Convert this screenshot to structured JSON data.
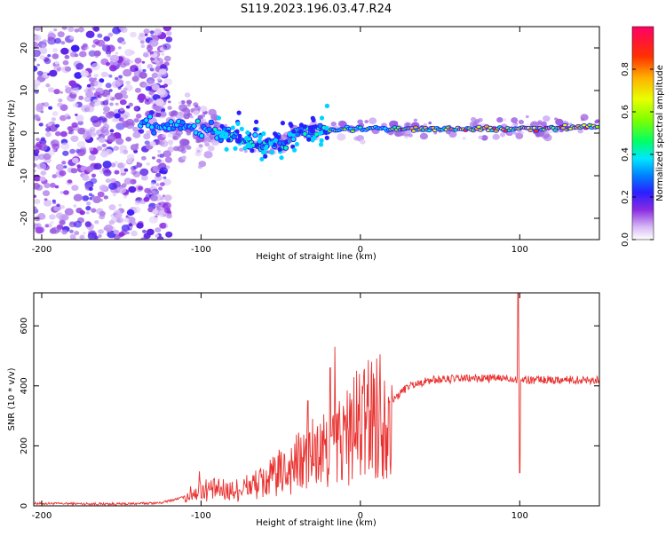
{
  "title": "S119.2023.196.03.47.R24",
  "chart_data": [
    {
      "type": "heatmap",
      "xlabel": "Height of straight line (km)",
      "ylabel": "Frequency (Hz)",
      "xlim": [
        -205,
        150
      ],
      "ylim": [
        -25,
        25
      ],
      "xticks": [
        -200,
        -100,
        0,
        100
      ],
      "yticks": [
        -20,
        -10,
        0,
        10,
        20
      ],
      "colorbar": {
        "label": "Normalized spectral amplitude",
        "range": [
          0,
          1
        ],
        "ticks": [
          "0.0",
          "0.2",
          "0.4",
          "0.6",
          "0.8"
        ]
      },
      "ridge": [
        {
          "x": -135,
          "f": 2.0
        },
        {
          "x": -120,
          "f": 1.5
        },
        {
          "x": -100,
          "f": 1.0
        },
        {
          "x": -85,
          "f": 0.0
        },
        {
          "x": -70,
          "f": -2.0
        },
        {
          "x": -60,
          "f": -3.0
        },
        {
          "x": -50,
          "f": -2.0
        },
        {
          "x": -40,
          "f": 0.0
        },
        {
          "x": -20,
          "f": 1.0
        },
        {
          "x": 0,
          "f": 1.0
        },
        {
          "x": 50,
          "f": 1.0
        },
        {
          "x": 100,
          "f": 1.0
        },
        {
          "x": 150,
          "f": 1.5
        }
      ]
    },
    {
      "type": "line",
      "xlabel": "Height of straight line (km)",
      "ylabel": "SNR (10 * v/v)",
      "xlim": [
        -205,
        150
      ],
      "ylim": [
        0,
        710
      ],
      "xticks": [
        -200,
        -100,
        0,
        100
      ],
      "yticks": [
        0,
        200,
        400,
        600
      ],
      "envelope": [
        {
          "x": -205,
          "y": 8
        },
        {
          "x": -150,
          "y": 6
        },
        {
          "x": -125,
          "y": 10
        },
        {
          "x": -110,
          "y": 30
        },
        {
          "x": -100,
          "y": 55
        },
        {
          "x": -80,
          "y": 50
        },
        {
          "x": -60,
          "y": 80
        },
        {
          "x": -40,
          "y": 140
        },
        {
          "x": -25,
          "y": 170
        },
        {
          "x": -10,
          "y": 230
        },
        {
          "x": 5,
          "y": 290
        },
        {
          "x": 15,
          "y": 320
        },
        {
          "x": 20,
          "y": 350
        },
        {
          "x": 30,
          "y": 400
        },
        {
          "x": 45,
          "y": 420
        },
        {
          "x": 70,
          "y": 425
        },
        {
          "x": 95,
          "y": 425
        },
        {
          "x": 105,
          "y": 420
        },
        {
          "x": 130,
          "y": 420
        },
        {
          "x": 150,
          "y": 420
        }
      ],
      "spikes": [
        {
          "x": -101,
          "y": 115
        },
        {
          "x": -33,
          "y": 350
        },
        {
          "x": -30,
          "y": 290
        },
        {
          "x": -16,
          "y": 530
        },
        {
          "x": -19,
          "y": 460
        },
        {
          "x": 7,
          "y": 480
        },
        {
          "x": 99,
          "y": 710
        },
        {
          "x": 100,
          "y": 110
        }
      ]
    }
  ]
}
